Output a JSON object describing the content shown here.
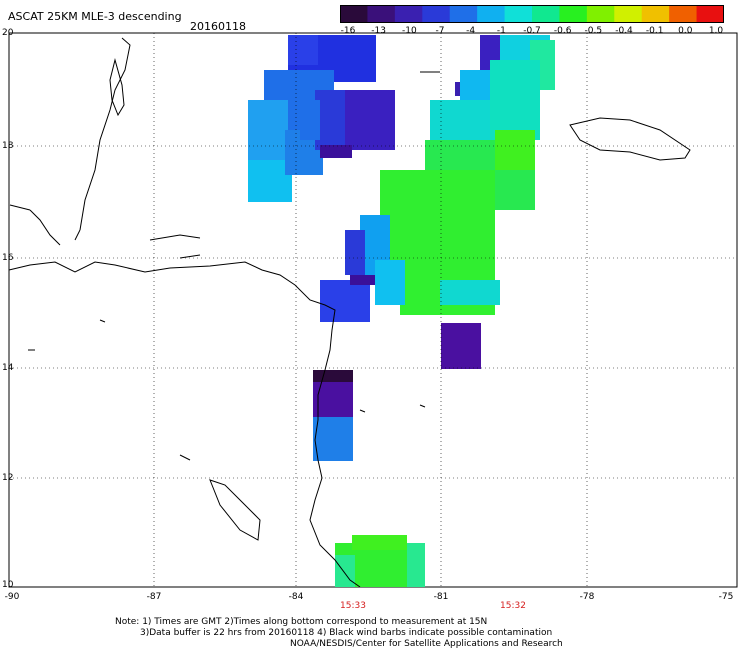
{
  "header": {
    "title": "ASCAT 25KM MLE-3 descending",
    "date": "20160118"
  },
  "colorbar": {
    "labels": [
      "-16",
      "-13",
      "-10",
      "-7",
      "-4",
      "-1",
      "-0.7",
      "-0.6",
      "-0.5",
      "-0.4",
      "-0.1",
      "0.0",
      "1.0"
    ],
    "colors": [
      "#2a0a3a",
      "#3a107a",
      "#3a20b0",
      "#2a3ad8",
      "#1f6fe8",
      "#10b0f0",
      "#10e0d8",
      "#10e890",
      "#28f020",
      "#80f000",
      "#d0f000",
      "#f0c000",
      "#f06000",
      "#e81010"
    ]
  },
  "axes": {
    "lat_labels": [
      "20",
      "18",
      "16",
      "14",
      "12",
      "10"
    ],
    "lon_labels": [
      "-90",
      "-87",
      "-84",
      "-81",
      "-78",
      "-75"
    ]
  },
  "times": [
    "15:33",
    "15:32"
  ],
  "notes": {
    "line1": "Note: 1) Times are GMT 2)Times along bottom correspond to measurement at 15N",
    "line2": "3)Data buffer is 22 hrs from 20160118 4) Black wind barbs indicate possible contamination",
    "line3": "NOAA/NESDIS/Center for Satellite Applications and Research"
  }
}
